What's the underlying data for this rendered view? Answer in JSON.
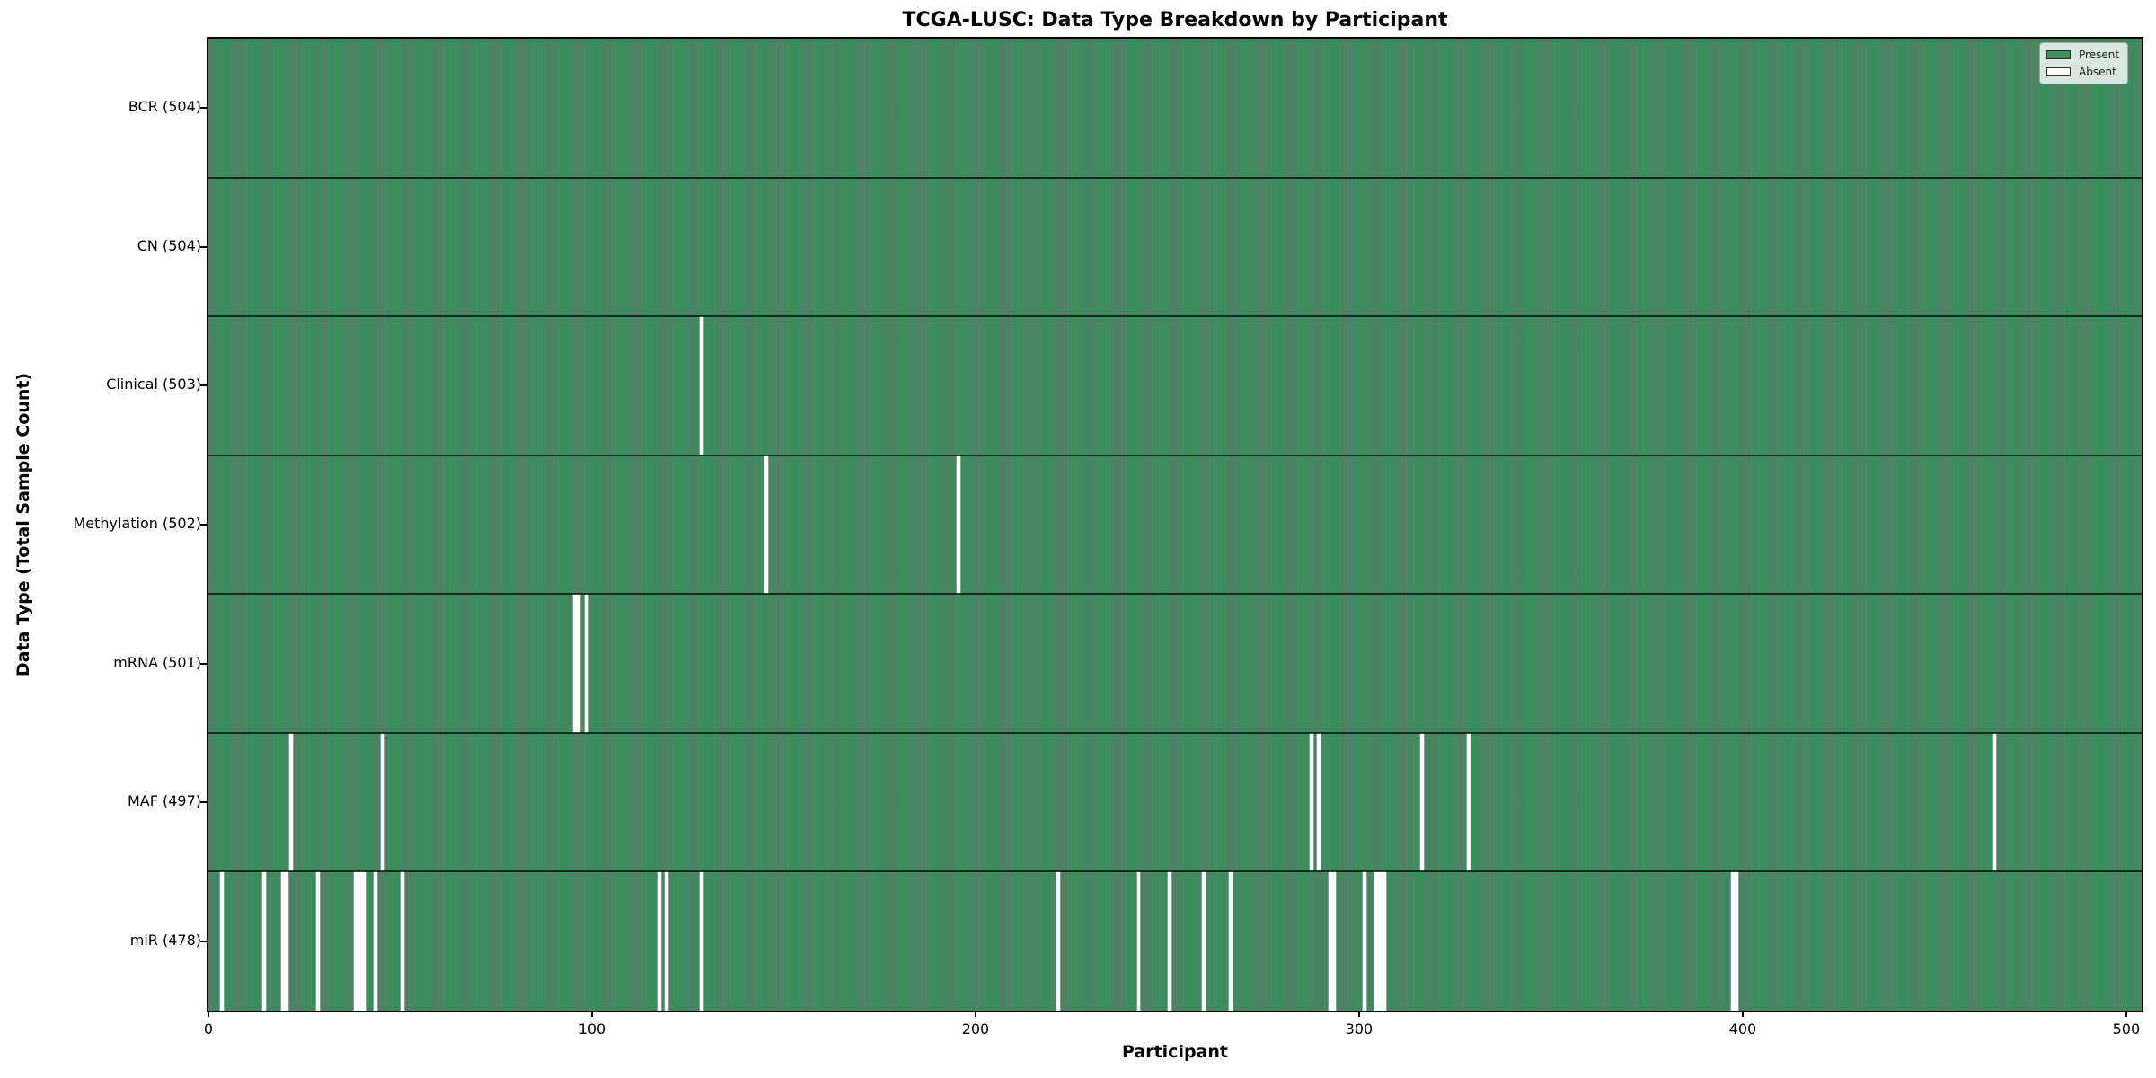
{
  "chart_data": {
    "type": "heatmap",
    "title": "TCGA-LUSC: Data Type Breakdown by Participant",
    "xlabel": "Participant",
    "ylabel": "Data Type (Total Sample Count)",
    "x_ticks": [
      0,
      100,
      200,
      300,
      400,
      500
    ],
    "x_range": [
      0,
      504
    ],
    "n_participants": 504,
    "grid": false,
    "legend_position": "upper right",
    "legend": [
      {
        "label": "Present",
        "color": "#3a8c5c"
      },
      {
        "label": "Absent",
        "color": "#ffffff"
      }
    ],
    "colors": {
      "present_fill": "#3a8c5c",
      "bar_edge": "rgba(8, 36, 22, 0.62)",
      "absent_fill": "#ffffff",
      "absent_edge": "rgba(8, 36, 22, 0.45)",
      "row_divider": "rgba(5, 22, 13, 0.8)",
      "axis": "#000000",
      "background": "#ffffff"
    },
    "rows": [
      {
        "label": "BCR (504)",
        "name": "BCR",
        "total": 504,
        "absent": []
      },
      {
        "label": "CN (504)",
        "name": "CN",
        "total": 504,
        "absent": []
      },
      {
        "label": "Clinical (503)",
        "name": "Clinical",
        "total": 503,
        "absent": [
          128
        ]
      },
      {
        "label": "Methylation (502)",
        "name": "Methylation",
        "total": 502,
        "absent": [
          145,
          195
        ]
      },
      {
        "label": "mRNA (501)",
        "name": "mRNA",
        "total": 501,
        "absent": [
          95,
          96,
          98
        ]
      },
      {
        "label": "MAF (497)",
        "name": "MAF",
        "total": 497,
        "absent": [
          21,
          45,
          287,
          289,
          316,
          328,
          465
        ]
      },
      {
        "label": "miR (478)",
        "name": "miR",
        "total": 478,
        "absent": [
          3,
          14,
          19,
          20,
          28,
          38,
          39,
          40,
          43,
          50,
          117,
          119,
          128,
          221,
          242,
          250,
          259,
          266,
          292,
          293,
          301,
          304,
          305,
          306,
          397,
          398
        ]
      }
    ]
  }
}
